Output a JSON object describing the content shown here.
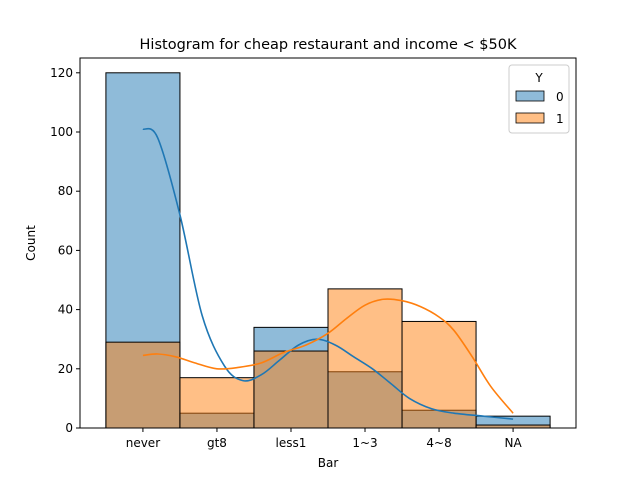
{
  "chart_data": {
    "type": "bar",
    "title": "Histogram for cheap restaurant and income < $50K",
    "xlabel": "Bar",
    "ylabel": "Count",
    "categories": [
      "never",
      "gt8",
      "less1",
      "1~3",
      "4~8",
      "NA"
    ],
    "ylim": [
      0,
      125
    ],
    "yticks": [
      0,
      20,
      40,
      60,
      80,
      100,
      120
    ],
    "legend": {
      "title": "Y",
      "position": "top-right"
    },
    "grid": false,
    "series": [
      {
        "name": "0",
        "color": "#1f77b4",
        "values": [
          120,
          5,
          34,
          19,
          6,
          4
        ],
        "kde": [
          [
            0,
            101
          ],
          [
            0.2,
            98
          ],
          [
            0.5,
            72
          ],
          [
            0.8,
            38
          ],
          [
            1.1,
            21
          ],
          [
            1.35,
            16
          ],
          [
            1.6,
            18
          ],
          [
            1.85,
            23
          ],
          [
            2.1,
            28
          ],
          [
            2.35,
            30
          ],
          [
            2.6,
            28
          ],
          [
            2.85,
            24
          ],
          [
            3.1,
            20
          ],
          [
            3.35,
            15
          ],
          [
            3.6,
            10
          ],
          [
            3.9,
            6.5
          ],
          [
            4.2,
            5
          ],
          [
            4.6,
            4
          ],
          [
            5.0,
            3
          ]
        ]
      },
      {
        "name": "1",
        "color": "#ff7f0e",
        "values": [
          29,
          17,
          26,
          47,
          36,
          1
        ],
        "kde": [
          [
            0,
            24.5
          ],
          [
            0.2,
            25
          ],
          [
            0.45,
            24
          ],
          [
            0.7,
            22
          ],
          [
            1.0,
            20
          ],
          [
            1.3,
            20.5
          ],
          [
            1.6,
            22
          ],
          [
            1.9,
            25.5
          ],
          [
            2.2,
            28
          ],
          [
            2.5,
            32
          ],
          [
            2.75,
            37
          ],
          [
            3.0,
            41.5
          ],
          [
            3.25,
            43.5
          ],
          [
            3.5,
            43
          ],
          [
            3.75,
            41
          ],
          [
            4.0,
            37.5
          ],
          [
            4.2,
            33
          ],
          [
            4.45,
            24
          ],
          [
            4.7,
            14
          ],
          [
            5.0,
            5
          ]
        ]
      }
    ]
  }
}
